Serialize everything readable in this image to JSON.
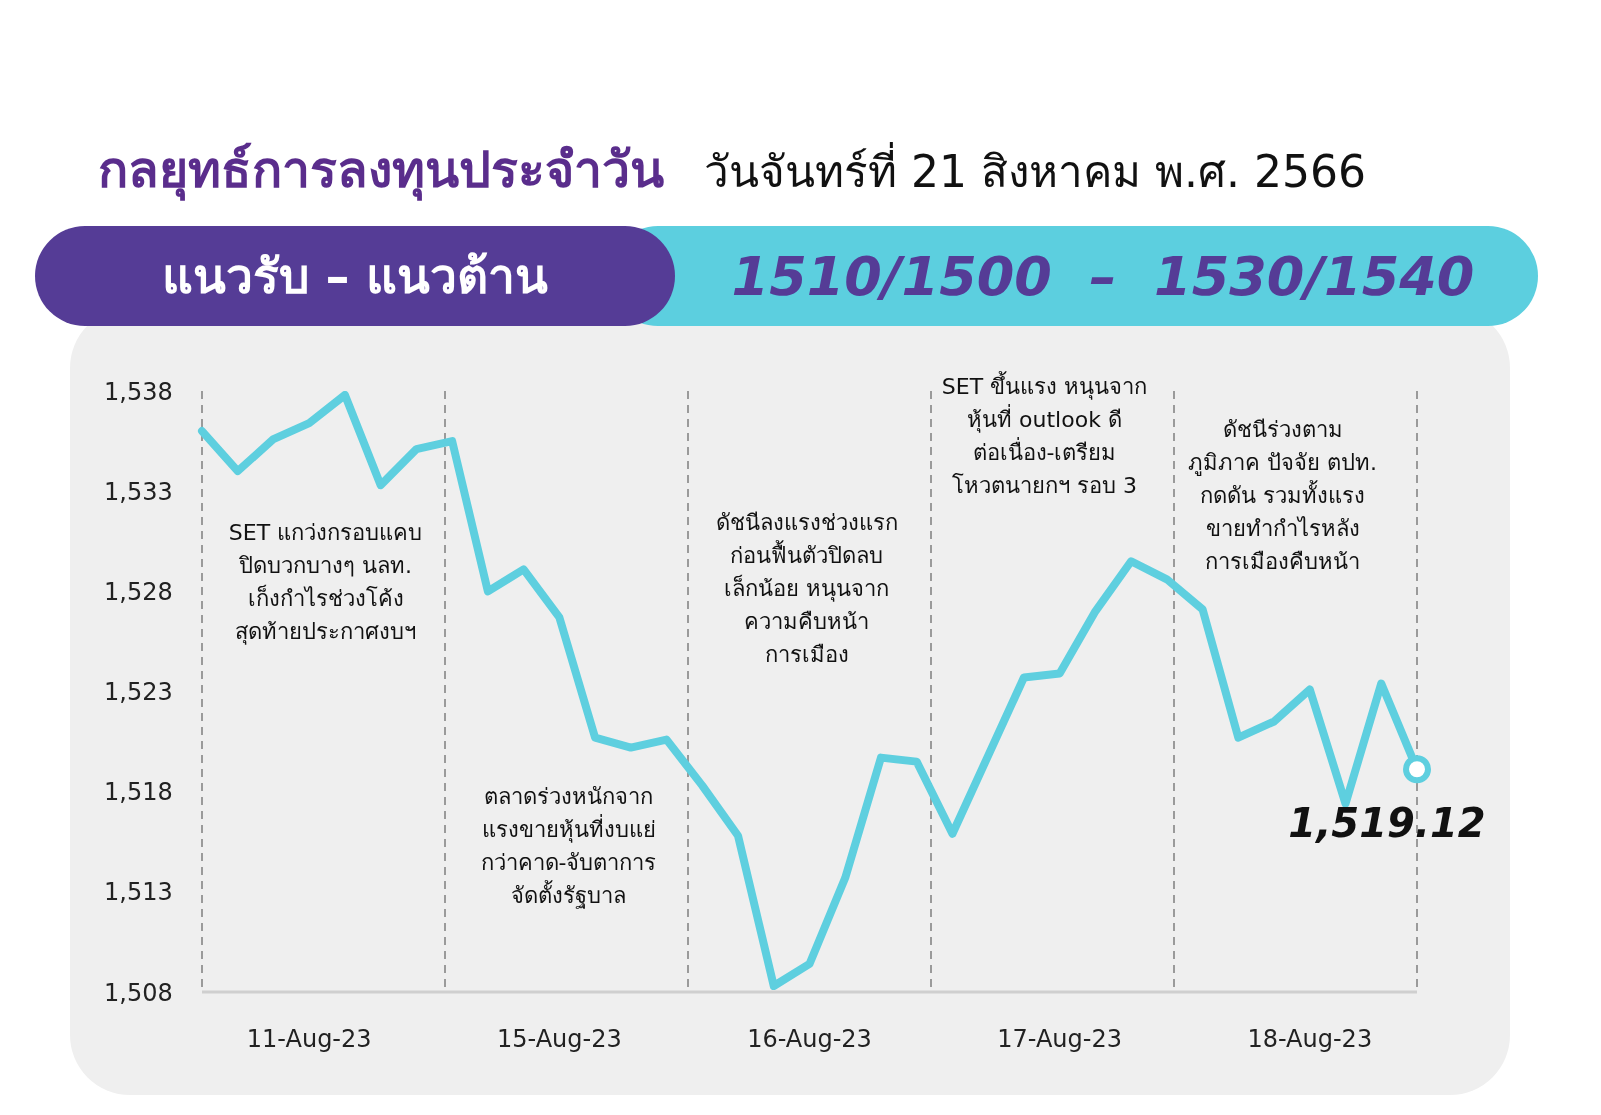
{
  "chart_data": {
    "type": "line",
    "title": "กลยุทธ์การลงทุนประจำวัน",
    "subtitle": "วันจันทร์ที่ 21 สิงหาคม พ.ศ. 2566",
    "annotations": [
      "แนวรับ – แนวต้าน",
      "1510/1500  –  1530/1540",
      "SET แกว่งกรอบแคบ\nปิดบวกบางๆ นลท.\nเก็งกำไรช่วงโค้ง\nสุดท้ายประกาศงบฯ",
      "ตลาดร่วงหนักจาก\nแรงขายหุ้นที่งบแย่\nกว่าคาด-จับตาการ\nจัดตั้งรัฐบาล",
      "ดัชนีลงแรงช่วงแรก\nก่อนฟื้นตัวปิดลบ\nเล็กน้อย หนุนจาก\nความคืบหน้า\nการเมือง",
      "SET ขึ้นแรง หนุนจาก\nหุ้นที่ outlook ดี\nต่อเนื่อง-เตรียม\nโหวตนายกฯ รอบ 3",
      "ดัชนีร่วงตาม\nภูมิภาค ปัจจัย ตปท.\nกดดัน รวมทั้งแรง\nขายทำกำไรหลัง\nการเมืองคืบหน้า"
    ],
    "categories": [
      null,
      null,
      null,
      "11-Aug-23",
      null,
      null,
      null,
      null,
      null,
      null,
      "15-Aug-23",
      null,
      null,
      null,
      null,
      null,
      null,
      "16-Aug-23",
      null,
      null,
      null,
      null,
      null,
      null,
      "17-Aug-23",
      null,
      null,
      null,
      null,
      null,
      null,
      "18-Aug-23",
      null,
      null,
      null
    ],
    "values": [
      1536.0,
      1534.0,
      1535.6,
      1536.4,
      1537.8,
      1533.3,
      1535.1,
      1535.5,
      1528.0,
      1529.1,
      1526.7,
      1520.7,
      1520.2,
      1520.6,
      1518.3,
      1515.8,
      1508.3,
      1509.4,
      1513.7,
      1519.7,
      1519.5,
      1515.9,
      1519.8,
      1523.7,
      1523.9,
      1527.0,
      1529.5,
      1528.6,
      1527.1,
      1520.7,
      1521.5,
      1523.1,
      1517.4,
      1523.4,
      1519.12
    ],
    "value_labels": [
      null,
      null,
      null,
      null,
      null,
      null,
      null,
      null,
      null,
      null,
      null,
      null,
      null,
      null,
      null,
      null,
      null,
      null,
      null,
      null,
      null,
      null,
      null,
      null,
      null,
      null,
      null,
      null,
      null,
      null,
      null,
      null,
      null,
      null,
      "1,519.12"
    ],
    "color": "#5ecfdf",
    "ylim": [
      1508,
      1538
    ],
    "yticks": [
      {
        "value": 1508,
        "label": "1,508"
      },
      {
        "value": 1513,
        "label": "1,513"
      },
      {
        "value": 1518,
        "label": "1,518"
      },
      {
        "value": 1523,
        "label": "1,523"
      },
      {
        "value": 1528,
        "label": "1,528"
      },
      {
        "value": 1533,
        "label": "1,533"
      },
      {
        "value": 1538,
        "label": "1,538"
      }
    ],
    "grid": "x",
    "marker": "none",
    "line_style": "solid"
  }
}
